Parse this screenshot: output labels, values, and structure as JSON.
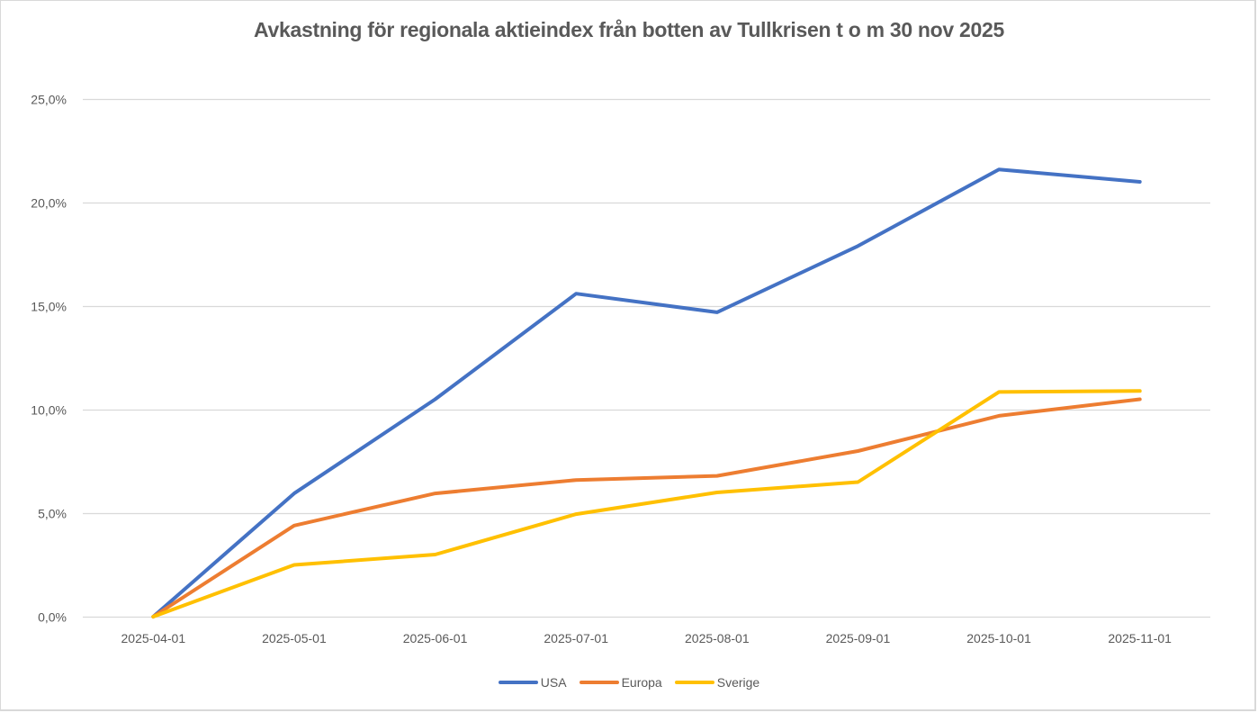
{
  "chart_data": {
    "type": "line",
    "title": "Avkastning för regionala aktieindex från  botten av Tullkrisen t o m 30 nov 2025",
    "xlabel": "",
    "ylabel": "",
    "categories": [
      "2025-04-01",
      "2025-05-01",
      "2025-06-01",
      "2025-07-01",
      "2025-08-01",
      "2025-09-01",
      "2025-10-01",
      "2025-11-01"
    ],
    "ylim": [
      0,
      25
    ],
    "yticks": [
      0,
      5,
      10,
      15,
      20,
      25
    ],
    "ytick_labels": [
      "0,0%",
      "5,0%",
      "10,0%",
      "15,0%",
      "20,0%",
      "25,0%"
    ],
    "grid": true,
    "legend_position": "bottom",
    "series": [
      {
        "name": "USA",
        "color": "#4472c4",
        "values": [
          0.0,
          5.95,
          10.5,
          15.6,
          14.7,
          17.9,
          21.6,
          21.0
        ]
      },
      {
        "name": "Europa",
        "color": "#ed7d31",
        "values": [
          0.0,
          4.4,
          5.95,
          6.6,
          6.8,
          8.0,
          9.7,
          10.5
        ]
      },
      {
        "name": "Sverige",
        "color": "#ffc000",
        "values": [
          0.0,
          2.5,
          3.0,
          4.95,
          6.0,
          6.5,
          10.85,
          10.9
        ]
      }
    ]
  }
}
